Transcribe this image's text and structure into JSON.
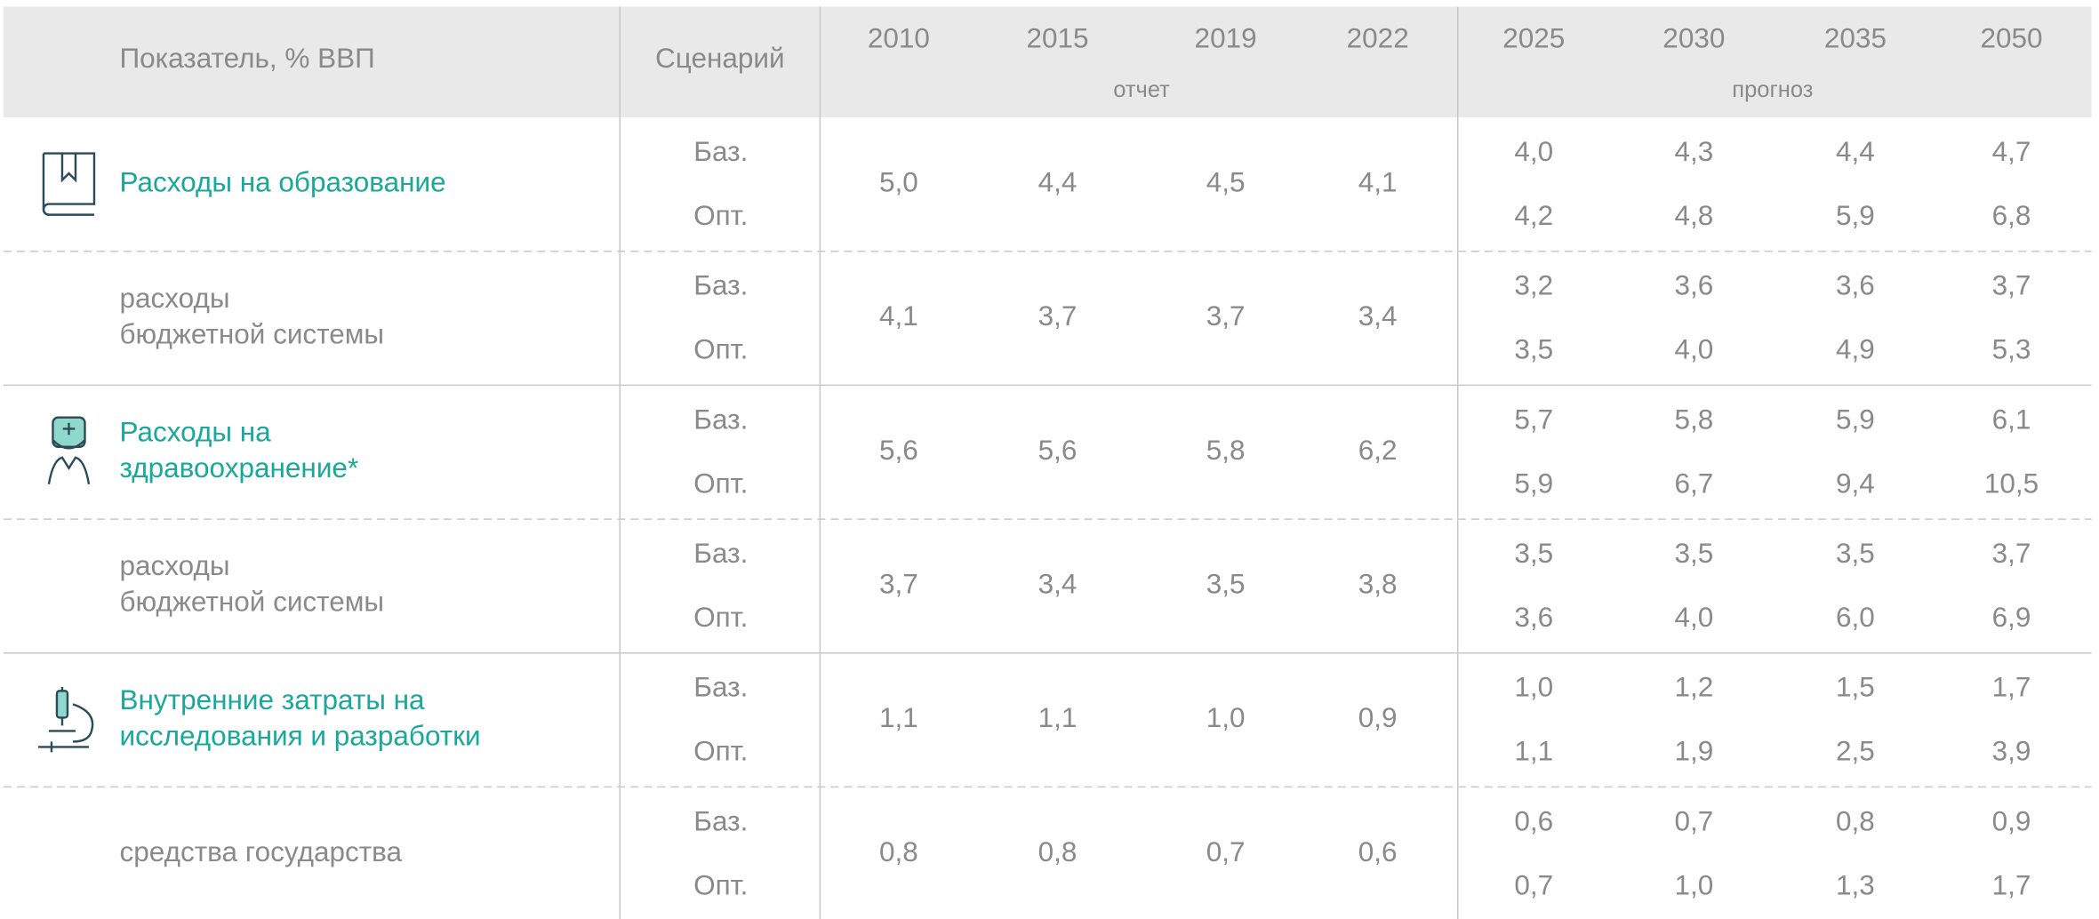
{
  "header": {
    "indicator": "Показатель, % ВВП",
    "scenario": "Сценарий",
    "years": [
      "2010",
      "2015",
      "2019",
      "2022",
      "2025",
      "2030",
      "2035",
      "2050"
    ],
    "report_label": "отчет",
    "forecast_label": "прогноз"
  },
  "rows": [
    {
      "label": [
        "Расходы на образование"
      ],
      "main": true,
      "scenarios": [
        "Баз.",
        "Опт."
      ],
      "history": [
        "5,0",
        "4,4",
        "4,5",
        "4,1"
      ],
      "forecast": [
        [
          "4,0",
          "4,3",
          "4,4",
          "4,7"
        ],
        [
          "4,2",
          "4,8",
          "5,9",
          "6,8"
        ]
      ]
    },
    {
      "label": [
        "расходы",
        "бюджетной системы"
      ],
      "main": false,
      "scenarios": [
        "Баз.",
        "Опт."
      ],
      "history": [
        "4,1",
        "3,7",
        "3,7",
        "3,4"
      ],
      "forecast": [
        [
          "3,2",
          "3,6",
          "3,6",
          "3,7"
        ],
        [
          "3,5",
          "4,0",
          "4,9",
          "5,3"
        ]
      ]
    },
    {
      "label": [
        "Расходы на",
        "здравоохранение*"
      ],
      "main": true,
      "scenarios": [
        "Баз.",
        "Опт."
      ],
      "history": [
        "5,6",
        "5,6",
        "5,8",
        "6,2"
      ],
      "forecast": [
        [
          "5,7",
          "5,8",
          "5,9",
          "6,1"
        ],
        [
          "5,9",
          "6,7",
          "9,4",
          "10,5"
        ]
      ]
    },
    {
      "label": [
        "расходы",
        "бюджетной системы"
      ],
      "main": false,
      "scenarios": [
        "Баз.",
        "Опт."
      ],
      "history": [
        "3,7",
        "3,4",
        "3,5",
        "3,8"
      ],
      "forecast": [
        [
          "3,5",
          "3,5",
          "3,5",
          "3,7"
        ],
        [
          "3,6",
          "4,0",
          "6,0",
          "6,9"
        ]
      ]
    },
    {
      "label": [
        "Внутренние затраты на",
        "исследования и разработки"
      ],
      "main": true,
      "scenarios": [
        "Баз.",
        "Опт."
      ],
      "history": [
        "1,1",
        "1,1",
        "1,0",
        "0,9"
      ],
      "forecast": [
        [
          "1,0",
          "1,2",
          "1,5",
          "1,7"
        ],
        [
          "1,1",
          "1,9",
          "2,5",
          "3,9"
        ]
      ]
    },
    {
      "label": [
        "средства государства"
      ],
      "main": false,
      "scenarios": [
        "Баз.",
        "Опт."
      ],
      "history": [
        "0,8",
        "0,8",
        "0,7",
        "0,6"
      ],
      "forecast": [
        [
          "0,6",
          "0,7",
          "0,8",
          "0,9"
        ],
        [
          "0,7",
          "1,0",
          "1,3",
          "1,7"
        ]
      ]
    }
  ]
}
